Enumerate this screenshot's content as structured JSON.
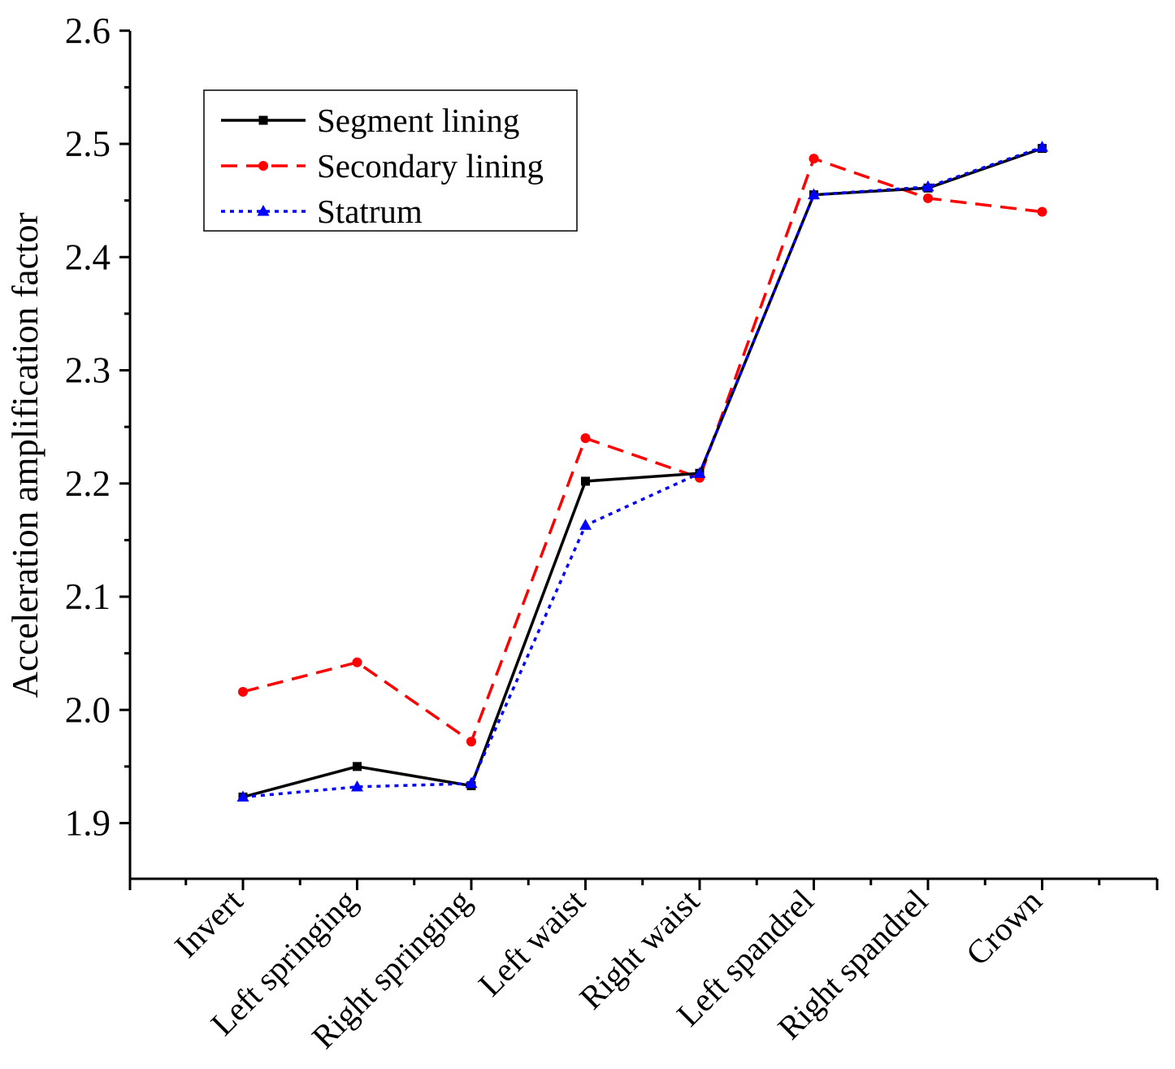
{
  "chart_data": {
    "type": "line",
    "title": "",
    "xlabel": "",
    "ylabel": "Acceleration amplification factor",
    "ylim": [
      1.85,
      2.6
    ],
    "yticks": [
      "1.9",
      "2.0",
      "2.1",
      "2.2",
      "2.3",
      "2.4",
      "2.5",
      "2.6"
    ],
    "categories": [
      "Invert",
      "Left springing",
      "Right springing",
      "Left waist",
      "Right waist",
      "Left spandrel",
      "Right spandrel",
      "Crown"
    ],
    "grid": false,
    "legend_position": "top-left",
    "series": [
      {
        "name": "Segment lining",
        "color": "#000000",
        "dash": "solid",
        "marker": "square",
        "values": [
          1.923,
          1.95,
          1.933,
          2.202,
          2.209,
          2.455,
          2.461,
          2.496
        ]
      },
      {
        "name": "Secondary lining",
        "color": "#ff0000",
        "dash": "dashed",
        "marker": "circle",
        "values": [
          2.016,
          2.042,
          1.972,
          2.24,
          2.205,
          2.487,
          2.452,
          2.44
        ]
      },
      {
        "name": "Statrum",
        "color": "#0000ff",
        "dash": "dotted",
        "marker": "triangle",
        "values": [
          1.923,
          1.932,
          1.935,
          2.163,
          2.209,
          2.455,
          2.462,
          2.497
        ]
      }
    ]
  }
}
